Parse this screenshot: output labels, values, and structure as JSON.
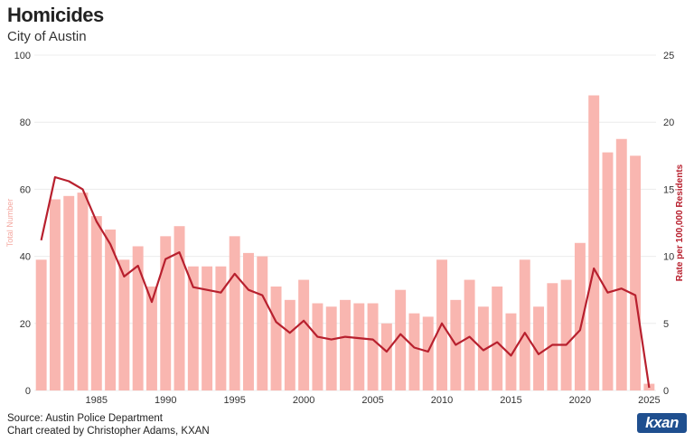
{
  "header": {
    "title": "Homicides",
    "subtitle": "City of Austin"
  },
  "footer": {
    "source": "Source: Austin Police Department",
    "credit": "Chart created by Christopher Adams, KXAN",
    "logo_text": "kxan"
  },
  "chart_data": {
    "type": "bar",
    "title": "Homicides",
    "subtitle": "City of Austin",
    "x": [
      1981,
      1982,
      1983,
      1984,
      1985,
      1986,
      1987,
      1988,
      1989,
      1990,
      1991,
      1992,
      1993,
      1994,
      1995,
      1996,
      1997,
      1998,
      1999,
      2000,
      2001,
      2002,
      2003,
      2004,
      2005,
      2006,
      2007,
      2008,
      2009,
      2010,
      2011,
      2012,
      2013,
      2014,
      2015,
      2016,
      2017,
      2018,
      2019,
      2020,
      2021,
      2022,
      2023,
      2024,
      2025
    ],
    "x_ticks": [
      1985,
      1990,
      1995,
      2000,
      2005,
      2010,
      2015,
      2020,
      2025
    ],
    "series": [
      {
        "name": "Total Number",
        "type": "bar",
        "axis": "left",
        "color": "#f9b6b0",
        "values": [
          39,
          57,
          58,
          59,
          52,
          48,
          39,
          43,
          31,
          46,
          49,
          37,
          37,
          37,
          46,
          41,
          40,
          31,
          27,
          33,
          26,
          25,
          27,
          26,
          26,
          20,
          30,
          23,
          22,
          39,
          27,
          33,
          25,
          31,
          23,
          39,
          25,
          32,
          33,
          44,
          88,
          71,
          75,
          70,
          2
        ]
      },
      {
        "name": "Rate per 100,000 Residents",
        "type": "line",
        "axis": "right",
        "color": "#b8202e",
        "values": [
          11.2,
          15.9,
          15.6,
          15.0,
          12.6,
          10.9,
          8.5,
          9.3,
          6.6,
          9.8,
          10.3,
          7.7,
          7.5,
          7.3,
          8.7,
          7.5,
          7.1,
          5.1,
          4.3,
          5.2,
          4.0,
          3.8,
          4.0,
          3.9,
          3.8,
          2.9,
          4.2,
          3.2,
          2.9,
          5.0,
          3.4,
          4.0,
          3.0,
          3.6,
          2.6,
          4.3,
          2.7,
          3.4,
          3.4,
          4.5,
          9.1,
          7.3,
          7.6,
          7.1,
          0.2
        ]
      }
    ],
    "ylabel": "Total Number",
    "y2label": "Rate per 100,000 Residents",
    "ylim": [
      0,
      100
    ],
    "y_ticks": [
      0,
      20,
      40,
      60,
      80,
      100
    ],
    "y2lim": [
      0,
      25
    ],
    "y2_ticks": [
      0,
      5,
      10,
      15,
      20,
      25
    ],
    "grid": true,
    "legend": "none"
  }
}
